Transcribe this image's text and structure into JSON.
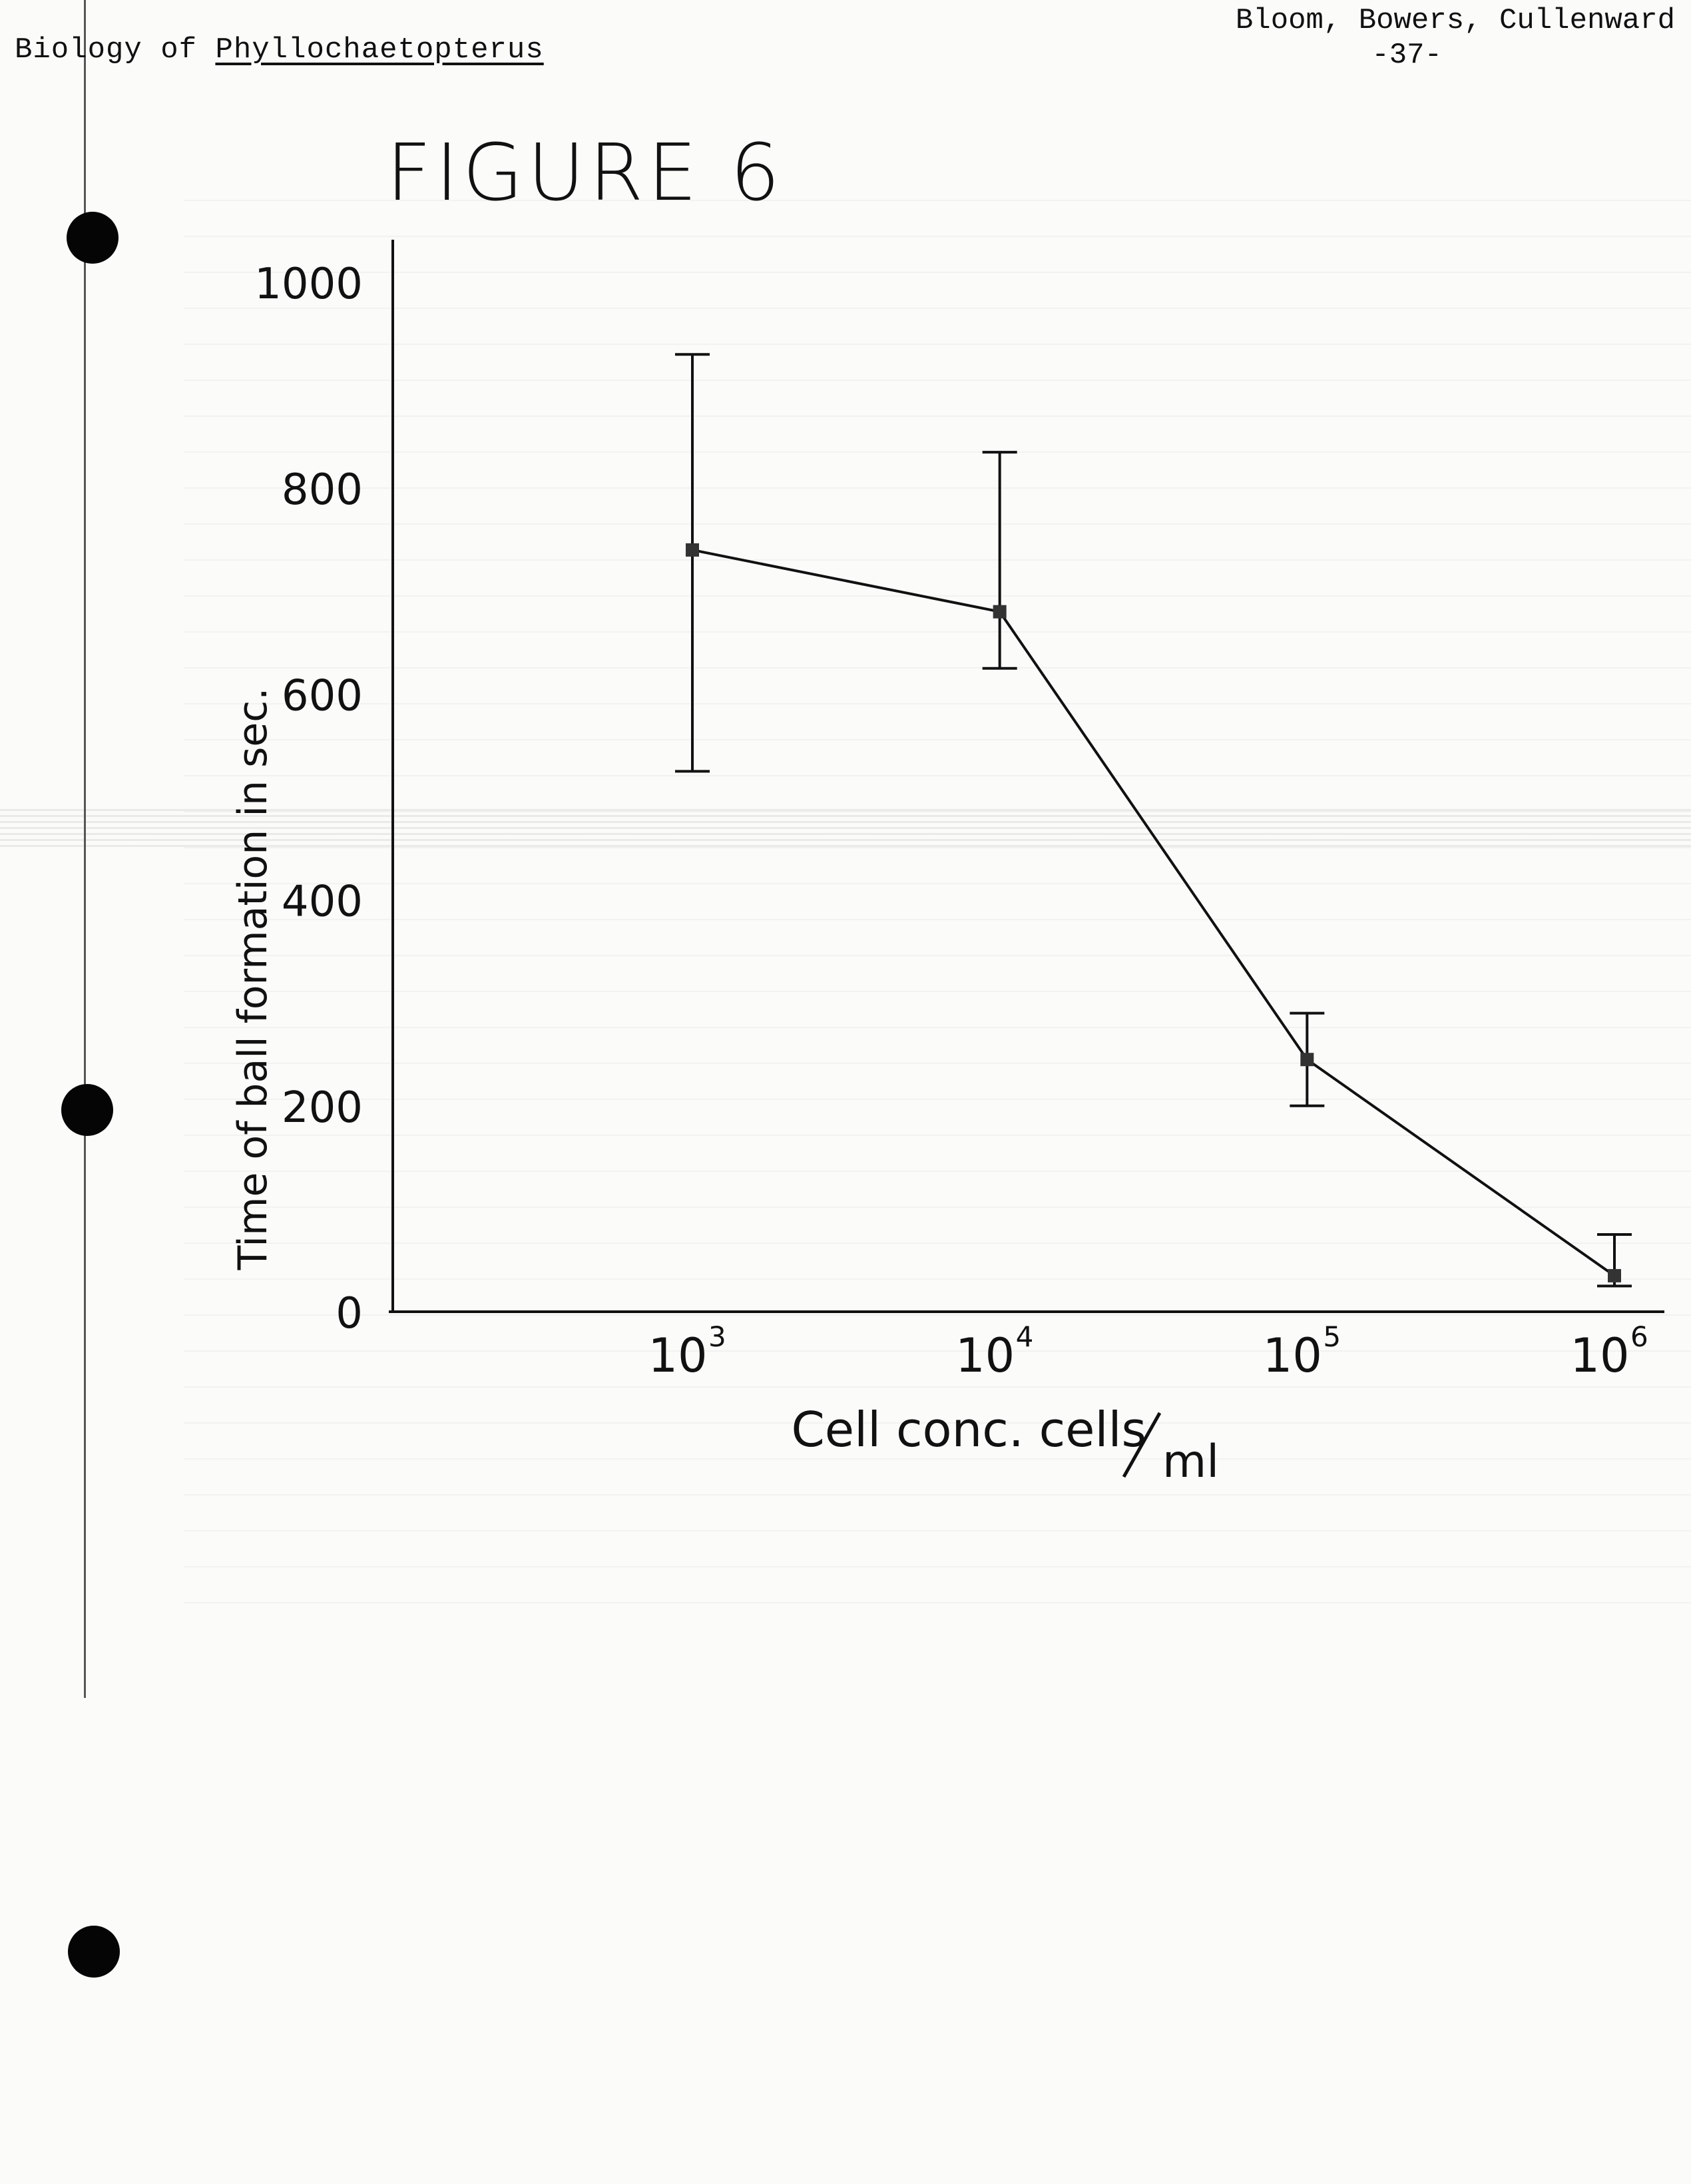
{
  "header": {
    "left_prefix": "Biology of ",
    "left_title": "Phyllochaetopterus",
    "authors": "Bloom, Bowers, Cullenward",
    "page_number": "-37-"
  },
  "figure_label": "FIGURE 6",
  "chart_data": {
    "type": "line",
    "title": "FIGURE 6",
    "xlabel": "Cell conc. cells/ml",
    "xlabel_main": "Cell conc. cells",
    "xlabel_unit": "ml",
    "ylabel": "Time of ball formation in sec.",
    "x_scale": "log",
    "x_ticks": [
      {
        "value": 1000,
        "base": "10",
        "exp": "3"
      },
      {
        "value": 10000,
        "base": "10",
        "exp": "4"
      },
      {
        "value": 100000,
        "base": "10",
        "exp": "5"
      },
      {
        "value": 1000000,
        "base": "10",
        "exp": "6"
      }
    ],
    "y_ticks": [
      "0",
      "200",
      "400",
      "600",
      "800",
      "1000"
    ],
    "ylim": [
      0,
      1000
    ],
    "grid": false,
    "series": [
      {
        "x": [
          1000,
          10000,
          100000,
          1000000
        ],
        "y": [
          740,
          680,
          245,
          35
        ],
        "err_low": [
          525,
          625,
          200,
          25
        ],
        "err_high": [
          930,
          835,
          290,
          75
        ]
      }
    ]
  }
}
